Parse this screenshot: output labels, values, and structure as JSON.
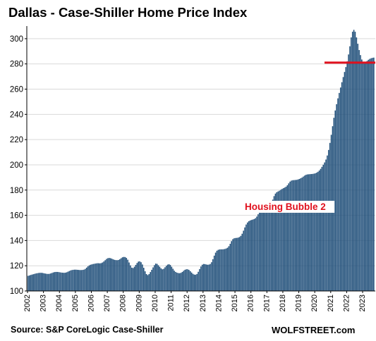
{
  "chart_data": {
    "type": "bar",
    "title": "Dallas - Case-Shiller Home Price Index",
    "xlabel": "",
    "ylabel": "",
    "ylim": [
      100,
      310
    ],
    "y_ticks": [
      100,
      120,
      140,
      160,
      180,
      200,
      220,
      240,
      260,
      280,
      300
    ],
    "x_tick_labels": [
      "2002",
      "2003",
      "2004",
      "2005",
      "2006",
      "2007",
      "2008",
      "2009",
      "2010",
      "2011",
      "2012",
      "2013",
      "2014",
      "2015",
      "2016",
      "2017",
      "2018",
      "2019",
      "2020",
      "2021",
      "2022",
      "2023"
    ],
    "start": "2002-01",
    "frequency": "monthly",
    "values": [
      112,
      112.3,
      112.7,
      113,
      113.3,
      113.6,
      113.9,
      114.1,
      114.3,
      114.4,
      114.4,
      114.3,
      114,
      113.8,
      113.6,
      113.5,
      113.6,
      113.9,
      114.3,
      114.7,
      115,
      115.1,
      115.1,
      115,
      114.8,
      114.6,
      114.5,
      114.4,
      114.5,
      114.8,
      115.3,
      115.8,
      116.3,
      116.6,
      116.8,
      116.9,
      116.9,
      116.8,
      116.7,
      116.6,
      116.6,
      116.7,
      116.9,
      117.5,
      118.5,
      119.5,
      120.3,
      120.8,
      121.1,
      121.4,
      121.6,
      121.8,
      122,
      122,
      121.9,
      122.1,
      122.6,
      123.4,
      124.4,
      125.4,
      126,
      126.2,
      126,
      125.6,
      125.1,
      124.7,
      124.5,
      124.4,
      124.6,
      125.2,
      126,
      126.7,
      127,
      126.9,
      126.2,
      124.8,
      122.6,
      120.3,
      118.5,
      118.2,
      119.2,
      120.7,
      122.2,
      123.3,
      123.5,
      122.8,
      121,
      118.4,
      115.6,
      113.4,
      112.6,
      113.4,
      115,
      116.8,
      118.7,
      120.5,
      121.7,
      121.5,
      120.4,
      119.2,
      118,
      117.2,
      117.6,
      118.8,
      120,
      120.9,
      121.2,
      120.6,
      119.2,
      117.6,
      116.1,
      115.1,
      114.5,
      114.2,
      114.1,
      114.4,
      115.1,
      116,
      116.8,
      117.2,
      117.2,
      116.7,
      115.7,
      114.6,
      113.6,
      113,
      112.9,
      113.5,
      115.2,
      117.4,
      119.4,
      120.8,
      121.4,
      121.3,
      121,
      120.8,
      120.9,
      121.4,
      122.8,
      125.2,
      128,
      130.4,
      131.9,
      132.6,
      132.9,
      133,
      133,
      133.1,
      133.3,
      133.7,
      134.3,
      135.5,
      137.4,
      139.5,
      141.1,
      141.8,
      142,
      142.1,
      142.3,
      142.8,
      143.7,
      145.4,
      147.8,
      150.4,
      152.7,
      154.3,
      155.3,
      155.9,
      156.3,
      156.6,
      157,
      157.7,
      159,
      160.8,
      162.7,
      164.3,
      165.4,
      166,
      166.3,
      166.5,
      166.7,
      167.1,
      168,
      169.8,
      172.4,
      175.2,
      177.2,
      178.3,
      178.9,
      179.5,
      180.2,
      180.9,
      181.5,
      182,
      182.7,
      183.8,
      185.3,
      186.7,
      187.5,
      187.8,
      187.9,
      188,
      188.1,
      188.4,
      188.8,
      189.3,
      189.9,
      190.7,
      191.5,
      192.1,
      192.4,
      192.5,
      192.6,
      192.7,
      192.8,
      193,
      193.3,
      193.8,
      194.5,
      195.5,
      196.8,
      198.4,
      200.1,
      201.9,
      204.2,
      207.4,
      211.8,
      217.4,
      223.8,
      230.6,
      237.3,
      243.1,
      248.1,
      252.7,
      257,
      261.3,
      265.5,
      269.6,
      273.6,
      277.5,
      282,
      287.5,
      294,
      301,
      305.5,
      307,
      305.5,
      301,
      296,
      291,
      287,
      283.5,
      281,
      280.3,
      281.1,
      282.4,
      283.3,
      284,
      284.5,
      284.8,
      285
    ]
  },
  "annotations": {
    "bubble_label": "Housing Bubble 2",
    "reference_line": {
      "value": 281,
      "color": "#e0101d"
    }
  },
  "colors": {
    "bar": "#1f4e79",
    "annotation": "#e0101d"
  },
  "footer": {
    "source": "Source: S&P CoreLogic Case-Shiller",
    "credit": "WOLFSTREET.com"
  }
}
